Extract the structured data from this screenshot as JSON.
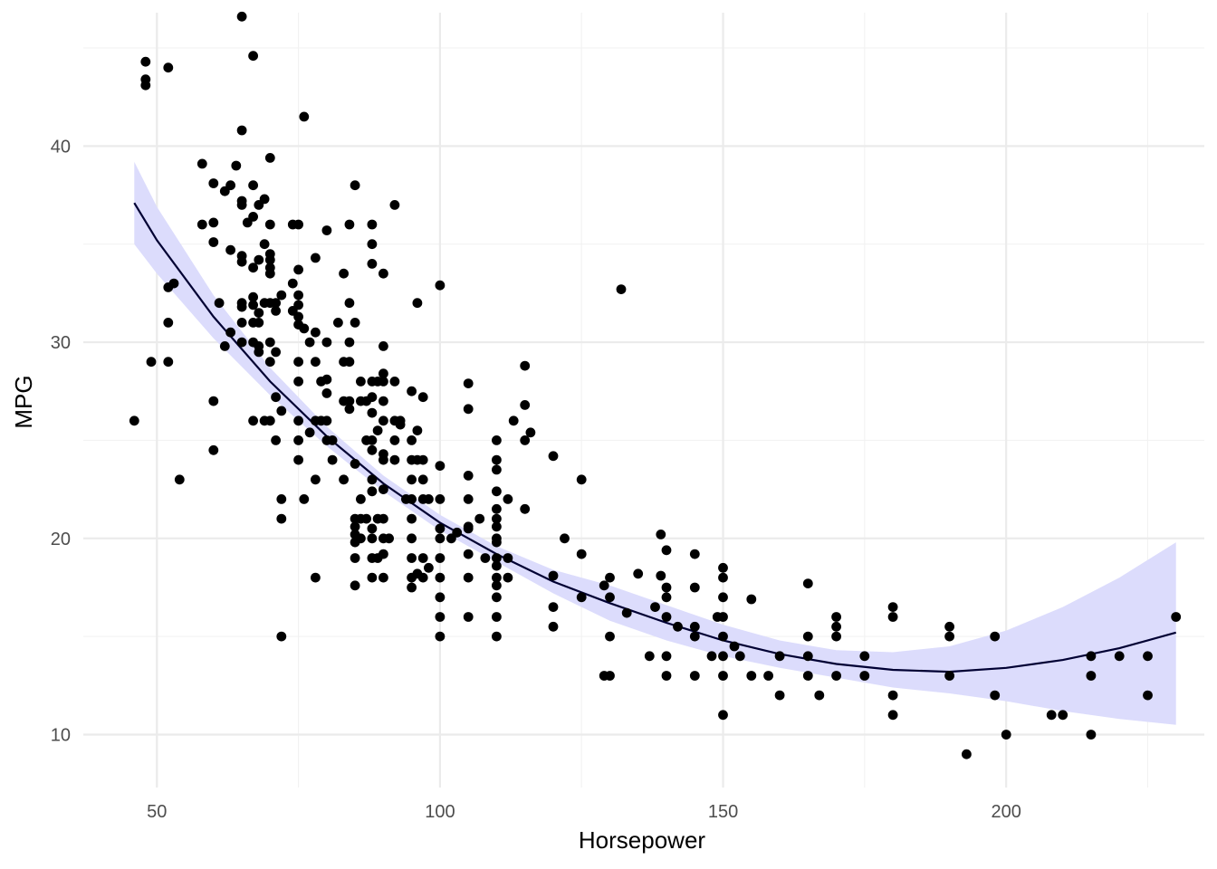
{
  "chart_data": {
    "type": "scatter",
    "title": "",
    "xlabel": "Horsepower",
    "ylabel": "MPG",
    "xlim": [
      37,
      235
    ],
    "ylim": [
      7.3,
      46.8
    ],
    "x_ticks": [
      50,
      100,
      150,
      200
    ],
    "x_tick_labels": [
      "50",
      "100",
      "150",
      "200"
    ],
    "y_ticks": [
      10,
      20,
      30,
      40
    ],
    "y_tick_labels": [
      "10",
      "20",
      "30",
      "40"
    ],
    "x_minor_ticks": [
      75,
      125,
      175,
      225
    ],
    "y_minor_ticks": [
      15,
      25,
      35,
      45
    ],
    "grid": true,
    "legend": "none",
    "colors": {
      "points": "#000000",
      "fit_line": "#000033",
      "ribbon": "#dcdcfc",
      "grid": "#ebebeb"
    },
    "fit": {
      "type": "quadratic",
      "x": [
        46,
        50,
        60,
        70,
        80,
        90,
        100,
        110,
        120,
        130,
        140,
        150,
        160,
        170,
        180,
        190,
        200,
        210,
        220,
        230
      ],
      "y": [
        37.1,
        35.2,
        31.3,
        28.0,
        25.2,
        22.8,
        20.8,
        19.2,
        17.8,
        16.7,
        15.7,
        14.8,
        14.1,
        13.6,
        13.3,
        13.2,
        13.4,
        13.8,
        14.4,
        15.2
      ],
      "lower": [
        35.0,
        33.5,
        30.2,
        27.3,
        24.7,
        22.4,
        20.4,
        18.8,
        17.2,
        15.8,
        14.8,
        14.0,
        13.4,
        12.9,
        12.4,
        12.1,
        11.7,
        11.2,
        10.8,
        10.5
      ],
      "upper": [
        39.2,
        36.9,
        32.4,
        28.7,
        25.7,
        23.2,
        21.2,
        19.6,
        18.4,
        17.6,
        16.6,
        15.6,
        14.8,
        14.3,
        14.2,
        14.5,
        15.3,
        16.5,
        18.0,
        19.8
      ]
    },
    "points": [
      [
        46,
        26
      ],
      [
        48,
        44.3
      ],
      [
        48,
        43.4
      ],
      [
        48,
        43.1
      ],
      [
        49,
        29
      ],
      [
        52,
        44
      ],
      [
        52,
        32.8
      ],
      [
        52,
        31
      ],
      [
        52,
        29
      ],
      [
        53,
        33
      ],
      [
        54,
        23
      ],
      [
        58,
        39.1
      ],
      [
        58,
        36
      ],
      [
        60,
        38.1
      ],
      [
        60,
        36.1
      ],
      [
        60,
        35.1
      ],
      [
        60,
        27
      ],
      [
        60,
        24.5
      ],
      [
        61,
        32
      ],
      [
        62,
        37.7
      ],
      [
        62,
        29.8
      ],
      [
        63,
        38
      ],
      [
        63,
        34.7
      ],
      [
        63,
        30.5
      ],
      [
        64,
        39
      ],
      [
        65,
        46.6
      ],
      [
        65,
        40.8
      ],
      [
        65,
        37.2
      ],
      [
        65,
        37
      ],
      [
        65,
        34.1
      ],
      [
        65,
        34.4
      ],
      [
        65,
        32
      ],
      [
        65,
        31.8
      ],
      [
        65,
        31
      ],
      [
        65,
        30
      ],
      [
        66,
        36.1
      ],
      [
        67,
        44.6
      ],
      [
        67,
        38
      ],
      [
        67,
        36.4
      ],
      [
        67,
        33.8
      ],
      [
        67,
        32.3
      ],
      [
        67,
        31.9
      ],
      [
        67,
        31
      ],
      [
        67,
        30
      ],
      [
        67,
        26
      ],
      [
        68,
        37
      ],
      [
        68,
        34.2
      ],
      [
        68,
        31.5
      ],
      [
        68,
        31
      ],
      [
        68,
        29.8
      ],
      [
        68,
        29.5
      ],
      [
        69,
        37.3
      ],
      [
        69,
        35
      ],
      [
        69,
        32
      ],
      [
        69,
        26
      ],
      [
        70,
        39.4
      ],
      [
        70,
        36
      ],
      [
        70,
        34.5
      ],
      [
        70,
        34.2
      ],
      [
        70,
        33.8
      ],
      [
        70,
        33.5
      ],
      [
        70,
        32
      ],
      [
        70,
        30
      ],
      [
        70,
        29
      ],
      [
        70,
        26
      ],
      [
        71,
        32
      ],
      [
        71,
        31.6
      ],
      [
        71,
        29.5
      ],
      [
        71,
        27.2
      ],
      [
        71,
        25
      ],
      [
        72,
        32.4
      ],
      [
        72,
        26.5
      ],
      [
        72,
        22
      ],
      [
        72,
        21
      ],
      [
        72,
        15
      ],
      [
        74,
        36
      ],
      [
        74,
        33
      ],
      [
        74,
        31.6
      ],
      [
        75,
        36
      ],
      [
        75,
        33.7
      ],
      [
        75,
        32.4
      ],
      [
        75,
        31.9
      ],
      [
        75,
        31.3
      ],
      [
        75,
        30.9
      ],
      [
        75,
        29
      ],
      [
        75,
        28
      ],
      [
        75,
        26
      ],
      [
        75,
        25
      ],
      [
        75,
        24
      ],
      [
        76,
        41.5
      ],
      [
        76,
        30.7
      ],
      [
        76,
        22
      ],
      [
        77,
        30
      ],
      [
        77,
        25.4
      ],
      [
        78,
        34.3
      ],
      [
        78,
        30.5
      ],
      [
        78,
        29
      ],
      [
        78,
        26
      ],
      [
        78,
        23
      ],
      [
        78,
        18
      ],
      [
        79,
        26
      ],
      [
        79,
        28
      ],
      [
        80,
        35.7
      ],
      [
        80,
        30
      ],
      [
        80,
        28.1
      ],
      [
        80,
        27.4
      ],
      [
        80,
        26
      ],
      [
        80,
        25
      ],
      [
        81,
        25
      ],
      [
        81,
        24
      ],
      [
        82,
        31
      ],
      [
        83,
        33.5
      ],
      [
        83,
        29
      ],
      [
        83,
        27
      ],
      [
        83,
        23
      ],
      [
        84,
        36
      ],
      [
        84,
        32
      ],
      [
        84,
        30
      ],
      [
        84,
        29
      ],
      [
        84,
        27
      ],
      [
        84,
        26.6
      ],
      [
        85,
        38
      ],
      [
        85,
        31
      ],
      [
        85,
        23.8
      ],
      [
        85,
        21
      ],
      [
        85,
        20.6
      ],
      [
        85,
        20.2
      ],
      [
        85,
        19.8
      ],
      [
        85,
        19
      ],
      [
        85,
        17.6
      ],
      [
        86,
        28
      ],
      [
        86,
        27
      ],
      [
        86,
        22
      ],
      [
        86,
        21
      ],
      [
        86,
        20
      ],
      [
        87,
        27
      ],
      [
        87,
        25
      ],
      [
        87,
        21
      ],
      [
        88,
        36
      ],
      [
        88,
        35
      ],
      [
        88,
        34
      ],
      [
        88,
        28
      ],
      [
        88,
        27.2
      ],
      [
        88,
        26.4
      ],
      [
        88,
        25
      ],
      [
        88,
        24.5
      ],
      [
        88,
        23
      ],
      [
        88,
        22.4
      ],
      [
        88,
        20.5
      ],
      [
        88,
        20
      ],
      [
        88,
        19
      ],
      [
        88,
        18
      ],
      [
        89,
        28
      ],
      [
        89,
        25.5
      ],
      [
        89,
        21
      ],
      [
        89,
        19
      ],
      [
        90,
        33.5
      ],
      [
        90,
        29.8
      ],
      [
        90,
        28.4
      ],
      [
        90,
        28
      ],
      [
        90,
        27
      ],
      [
        90,
        26
      ],
      [
        90,
        24.3
      ],
      [
        90,
        24
      ],
      [
        90,
        22.5
      ],
      [
        90,
        21
      ],
      [
        90,
        20
      ],
      [
        90,
        19.2
      ],
      [
        90,
        18
      ],
      [
        91,
        20
      ],
      [
        92,
        37
      ],
      [
        92,
        28
      ],
      [
        92,
        26
      ],
      [
        92,
        25
      ],
      [
        92,
        24
      ],
      [
        93,
        26
      ],
      [
        93,
        25.8
      ],
      [
        94,
        22
      ],
      [
        95,
        27.5
      ],
      [
        95,
        25
      ],
      [
        95,
        24
      ],
      [
        95,
        23
      ],
      [
        95,
        22
      ],
      [
        95,
        21
      ],
      [
        95,
        20
      ],
      [
        95,
        19
      ],
      [
        95,
        18
      ],
      [
        95,
        17.5
      ],
      [
        96,
        32
      ],
      [
        96,
        25.5
      ],
      [
        96,
        24
      ],
      [
        96,
        18.2
      ],
      [
        97,
        27.2
      ],
      [
        97,
        24
      ],
      [
        97,
        23
      ],
      [
        97,
        22
      ],
      [
        97,
        19
      ],
      [
        97,
        18
      ],
      [
        98,
        22
      ],
      [
        98,
        18.5
      ],
      [
        100,
        32.9
      ],
      [
        100,
        23.7
      ],
      [
        100,
        22
      ],
      [
        100,
        20.5
      ],
      [
        100,
        20
      ],
      [
        100,
        19
      ],
      [
        100,
        18
      ],
      [
        100,
        17
      ],
      [
        100,
        16
      ],
      [
        100,
        15
      ],
      [
        102,
        20
      ],
      [
        103,
        20.3
      ],
      [
        105,
        27.9
      ],
      [
        105,
        26.6
      ],
      [
        105,
        23.2
      ],
      [
        105,
        22
      ],
      [
        105,
        20.6
      ],
      [
        105,
        20.5
      ],
      [
        105,
        19.2
      ],
      [
        105,
        18
      ],
      [
        105,
        16
      ],
      [
        107,
        21
      ],
      [
        108,
        19
      ],
      [
        110,
        25
      ],
      [
        110,
        24
      ],
      [
        110,
        23.5
      ],
      [
        110,
        22.4
      ],
      [
        110,
        21.5
      ],
      [
        110,
        21
      ],
      [
        110,
        20.6
      ],
      [
        110,
        20
      ],
      [
        110,
        19.8
      ],
      [
        110,
        19
      ],
      [
        110,
        18.6
      ],
      [
        110,
        18
      ],
      [
        110,
        17.6
      ],
      [
        110,
        17
      ],
      [
        110,
        16
      ],
      [
        110,
        15
      ],
      [
        112,
        22
      ],
      [
        112,
        19
      ],
      [
        112,
        18
      ],
      [
        113,
        26
      ],
      [
        115,
        28.8
      ],
      [
        115,
        26.8
      ],
      [
        115,
        25
      ],
      [
        115,
        21.5
      ],
      [
        116,
        25.4
      ],
      [
        120,
        24.2
      ],
      [
        120,
        18.1
      ],
      [
        120,
        16.5
      ],
      [
        120,
        15.5
      ],
      [
        122,
        20
      ],
      [
        125,
        23
      ],
      [
        125,
        19.2
      ],
      [
        125,
        17
      ],
      [
        129,
        17.6
      ],
      [
        129,
        13
      ],
      [
        130,
        18
      ],
      [
        130,
        17
      ],
      [
        130,
        15
      ],
      [
        130,
        13
      ],
      [
        132,
        32.7
      ],
      [
        133,
        16.2
      ],
      [
        135,
        18.2
      ],
      [
        137,
        14
      ],
      [
        138,
        16.5
      ],
      [
        139,
        20.2
      ],
      [
        139,
        18.1
      ],
      [
        140,
        19.4
      ],
      [
        140,
        17.5
      ],
      [
        140,
        17
      ],
      [
        140,
        16
      ],
      [
        140,
        14
      ],
      [
        140,
        13
      ],
      [
        142,
        15.5
      ],
      [
        145,
        19.2
      ],
      [
        145,
        17.5
      ],
      [
        145,
        15.5
      ],
      [
        145,
        15
      ],
      [
        145,
        13
      ],
      [
        148,
        14
      ],
      [
        149,
        16
      ],
      [
        150,
        18.5
      ],
      [
        150,
        18
      ],
      [
        150,
        17
      ],
      [
        150,
        16
      ],
      [
        150,
        15
      ],
      [
        150,
        14
      ],
      [
        150,
        13
      ],
      [
        150,
        11
      ],
      [
        152,
        14.5
      ],
      [
        153,
        14
      ],
      [
        155,
        16.9
      ],
      [
        155,
        13
      ],
      [
        158,
        13
      ],
      [
        160,
        14
      ],
      [
        160,
        12
      ],
      [
        165,
        17.7
      ],
      [
        165,
        15
      ],
      [
        165,
        14
      ],
      [
        165,
        13
      ],
      [
        167,
        12
      ],
      [
        170,
        16
      ],
      [
        170,
        15.5
      ],
      [
        170,
        15
      ],
      [
        170,
        13
      ],
      [
        175,
        14
      ],
      [
        175,
        13
      ],
      [
        180,
        16.5
      ],
      [
        180,
        16
      ],
      [
        180,
        12
      ],
      [
        180,
        11
      ],
      [
        190,
        15.5
      ],
      [
        190,
        15
      ],
      [
        190,
        13
      ],
      [
        193,
        9
      ],
      [
        198,
        15
      ],
      [
        198,
        12
      ],
      [
        200,
        10
      ],
      [
        208,
        11
      ],
      [
        210,
        11
      ],
      [
        215,
        14
      ],
      [
        215,
        13
      ],
      [
        215,
        10
      ],
      [
        220,
        14
      ],
      [
        225,
        14
      ],
      [
        225,
        12
      ],
      [
        230,
        16
      ]
    ]
  }
}
